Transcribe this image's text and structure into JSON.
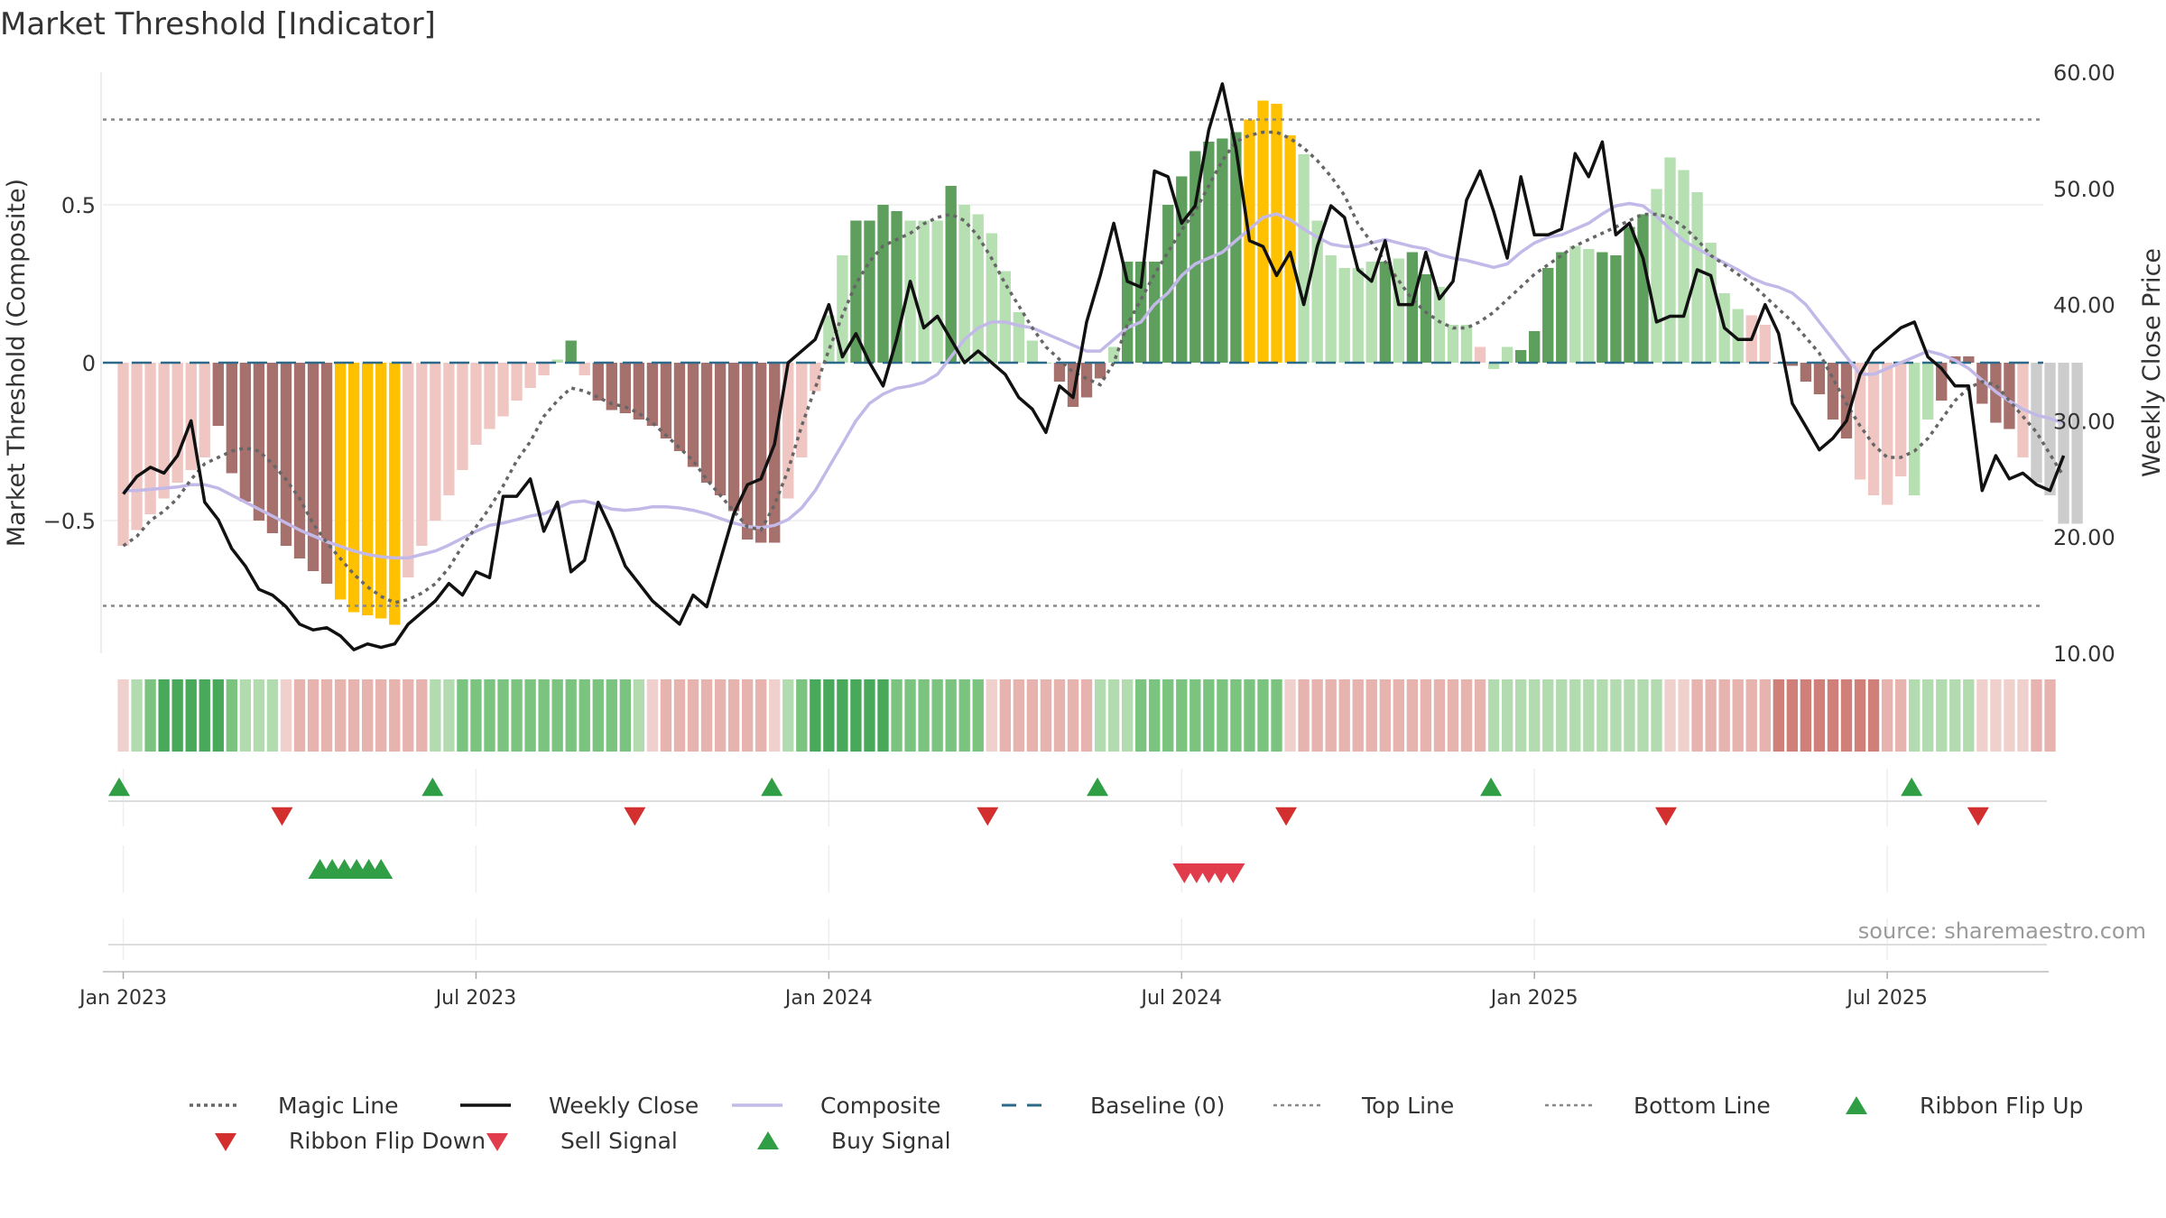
{
  "chart_data": {
    "type": "bar",
    "title": "Market Threshold [Indicator]",
    "ylabel": "Market Threshold (Composite)",
    "y2label": "Weekly Close Price",
    "ylim": [
      -0.92,
      0.92
    ],
    "y2lim": [
      10,
      60
    ],
    "yticks": [
      0.5,
      0,
      -0.5
    ],
    "yticklabels": [
      "0.5",
      "0",
      "−0.5"
    ],
    "y2ticks": [
      60,
      50,
      40,
      30,
      20,
      10
    ],
    "y2ticklabels": [
      "60.00",
      "50.00",
      "40.00",
      "30.00",
      "20.00",
      "10.00"
    ],
    "top_line": 0.77,
    "bottom_line": -0.77,
    "baseline": 0,
    "xticklabels": [
      "Jan 2023",
      "Jul 2023",
      "Jan 2024",
      "Jul 2024",
      "Jan 2025",
      "Jul 2025"
    ],
    "xtick_weeks": [
      0,
      26,
      52,
      78,
      104,
      130
    ],
    "week_range": [
      -1.5,
      141.5
    ],
    "source": "source: sharemaestro.com",
    "composite_bars": [
      -0.58,
      -0.53,
      -0.48,
      -0.43,
      -0.38,
      -0.34,
      -0.3,
      -0.2,
      -0.35,
      -0.44,
      -0.5,
      -0.54,
      -0.58,
      -0.62,
      -0.66,
      -0.7,
      -0.75,
      -0.79,
      -0.8,
      -0.81,
      -0.83,
      -0.68,
      -0.58,
      -0.5,
      -0.42,
      -0.34,
      -0.26,
      -0.21,
      -0.17,
      -0.12,
      -0.08,
      -0.04,
      0.01,
      0.07,
      -0.04,
      -0.12,
      -0.15,
      -0.16,
      -0.18,
      -0.2,
      -0.24,
      -0.28,
      -0.33,
      -0.38,
      -0.42,
      -0.47,
      -0.56,
      -0.57,
      -0.57,
      -0.43,
      -0.3,
      -0.09,
      0.15,
      0.34,
      0.45,
      0.45,
      0.5,
      0.48,
      0.45,
      0.45,
      0.45,
      0.56,
      0.5,
      0.47,
      0.41,
      0.29,
      0.16,
      0.07,
      0.0,
      -0.06,
      -0.14,
      -0.11,
      -0.05,
      0.05,
      0.32,
      0.32,
      0.32,
      0.5,
      0.59,
      0.67,
      0.7,
      0.71,
      0.73,
      0.77,
      0.83,
      0.82,
      0.72,
      0.66,
      0.45,
      0.34,
      0.3,
      0.3,
      0.32,
      0.32,
      0.33,
      0.35,
      0.28,
      0.24,
      0.12,
      0.12,
      0.05,
      -0.02,
      0.05,
      0.04,
      0.1,
      0.3,
      0.35,
      0.37,
      0.36,
      0.35,
      0.34,
      0.43,
      0.47,
      0.55,
      0.65,
      0.61,
      0.54,
      0.38,
      0.22,
      0.17,
      0.15,
      0.12,
      0.0,
      -0.01,
      -0.06,
      -0.1,
      -0.18,
      -0.24,
      -0.37,
      -0.42,
      -0.45,
      -0.36,
      -0.42,
      -0.18,
      -0.12,
      0.02,
      0.02,
      -0.13,
      -0.19,
      -0.21,
      -0.3,
      -0.38,
      -0.42,
      -0.51,
      -0.51
    ],
    "bar_colors": [
      "#efc6c1",
      "#efc6c1",
      "#efc6c1",
      "#efc6c1",
      "#efc6c1",
      "#efc6c1",
      "#efc6c1",
      "#a6706c",
      "#a6706c",
      "#a6706c",
      "#a6706c",
      "#a6706c",
      "#a6706c",
      "#a6706c",
      "#a6706c",
      "#a6706c",
      "#ffc000",
      "#ffc000",
      "#ffc000",
      "#ffc000",
      "#ffc000",
      "#efc6c1",
      "#efc6c1",
      "#efc6c1",
      "#efc6c1",
      "#efc6c1",
      "#efc6c1",
      "#efc6c1",
      "#efc6c1",
      "#efc6c1",
      "#efc6c1",
      "#efc6c1",
      "#b6dfb2",
      "#5e9f5e",
      "#efc6c1",
      "#a6706c",
      "#a6706c",
      "#a6706c",
      "#a6706c",
      "#a6706c",
      "#a6706c",
      "#a6706c",
      "#a6706c",
      "#a6706c",
      "#a6706c",
      "#a6706c",
      "#a6706c",
      "#a6706c",
      "#a6706c",
      "#efc6c1",
      "#efc6c1",
      "#efc6c1",
      "#b6dfb2",
      "#b6dfb2",
      "#5e9f5e",
      "#5e9f5e",
      "#5e9f5e",
      "#5e9f5e",
      "#b6dfb2",
      "#b6dfb2",
      "#b6dfb2",
      "#5e9f5e",
      "#b6dfb2",
      "#b6dfb2",
      "#b6dfb2",
      "#b6dfb2",
      "#b6dfb2",
      "#b6dfb2",
      "#b6dfb2",
      "#a6706c",
      "#a6706c",
      "#a6706c",
      "#a6706c",
      "#b6dfb2",
      "#5e9f5e",
      "#5e9f5e",
      "#5e9f5e",
      "#5e9f5e",
      "#5e9f5e",
      "#5e9f5e",
      "#5e9f5e",
      "#5e9f5e",
      "#5e9f5e",
      "#ffc000",
      "#ffc000",
      "#ffc000",
      "#ffc000",
      "#b6dfb2",
      "#b6dfb2",
      "#b6dfb2",
      "#b6dfb2",
      "#b6dfb2",
      "#b6dfb2",
      "#5e9f5e",
      "#b6dfb2",
      "#5e9f5e",
      "#5e9f5e",
      "#b6dfb2",
      "#b6dfb2",
      "#b6dfb2",
      "#efc6c1",
      "#b6dfb2",
      "#b6dfb2",
      "#5e9f5e",
      "#5e9f5e",
      "#5e9f5e",
      "#5e9f5e",
      "#b6dfb2",
      "#b6dfb2",
      "#5e9f5e",
      "#5e9f5e",
      "#5e9f5e",
      "#5e9f5e",
      "#b6dfb2",
      "#b6dfb2",
      "#b6dfb2",
      "#b6dfb2",
      "#b6dfb2",
      "#b6dfb2",
      "#b6dfb2",
      "#efc6c1",
      "#efc6c1",
      "#a6706c",
      "#a6706c",
      "#a6706c",
      "#a6706c",
      "#a6706c",
      "#a6706c",
      "#efc6c1",
      "#efc6c1",
      "#efc6c1",
      "#efc6c1",
      "#b6dfb2",
      "#b6dfb2",
      "#a6706c",
      "#a6706c",
      "#a6706c",
      "#a6706c",
      "#a6706c",
      "#a6706c",
      "#efc6c1"
    ],
    "weekly_close": [
      23.7,
      25.2,
      26.0,
      25.5,
      27.0,
      30.0,
      23.0,
      21.5,
      19.0,
      17.5,
      15.5,
      15.0,
      14.0,
      12.5,
      12.0,
      12.2,
      11.5,
      10.3,
      10.8,
      10.5,
      10.8,
      12.5,
      13.5,
      14.5,
      16.0,
      15.0,
      17.0,
      16.5,
      23.5,
      23.5,
      25.0,
      20.5,
      23.0,
      17.0,
      18.0,
      23.0,
      20.5,
      17.5,
      16.0,
      14.5,
      13.5,
      12.5,
      15.0,
      14.0,
      18.0,
      22.0,
      24.5,
      25.0,
      28.0,
      35.0,
      36.0,
      37.0,
      40.0,
      35.5,
      37.5,
      35.0,
      33.0,
      37.0,
      42.0,
      38.0,
      39.0,
      37.0,
      35.0,
      36.0,
      35.0,
      34.0,
      32.0,
      31.0,
      29.0,
      33.0,
      32.0,
      38.5,
      42.5,
      47.0,
      42.0,
      41.5,
      51.5,
      51.0,
      47.0,
      48.5,
      55.0,
      59.0,
      53.5,
      45.5,
      45.0,
      42.5,
      44.5,
      40.0,
      45.0,
      48.5,
      47.5,
      43.0,
      42.0,
      45.5,
      40.0,
      40.0,
      44.5,
      40.5,
      42.0,
      49.0,
      51.5,
      48.0,
      44.0,
      51.0,
      46.0,
      46.0,
      46.5,
      53.0,
      51.0,
      54.0,
      46.0,
      47.0,
      44.0,
      38.5,
      39.0,
      39.0,
      43.0,
      42.5,
      38.0,
      37.0,
      37.0,
      40.0,
      37.5,
      31.5,
      29.5,
      27.5,
      28.5,
      30.0,
      34.0,
      36.0,
      37.0,
      38.0,
      38.5,
      35.5,
      34.5,
      33.0,
      33.0,
      24.0,
      27.0,
      25.0,
      25.5,
      24.5,
      24.0,
      27.0
    ],
    "composite_line": [
      24.0,
      24.0,
      24.1,
      24.2,
      24.3,
      24.5,
      24.5,
      24.2,
      23.6,
      23.0,
      22.4,
      21.8,
      21.2,
      20.6,
      20.1,
      19.6,
      19.2,
      18.8,
      18.5,
      18.3,
      18.2,
      18.2,
      18.5,
      18.8,
      19.3,
      19.9,
      20.5,
      21.0,
      21.2,
      21.5,
      21.8,
      22.0,
      22.5,
      23.0,
      23.1,
      22.8,
      22.4,
      22.3,
      22.4,
      22.6,
      22.6,
      22.5,
      22.3,
      22.0,
      21.6,
      21.2,
      20.9,
      20.8,
      21.0,
      21.5,
      22.5,
      24.0,
      26.0,
      28.0,
      30.0,
      31.5,
      32.3,
      32.8,
      33.0,
      33.3,
      34.0,
      35.5,
      37.0,
      38.0,
      38.5,
      38.5,
      38.2,
      38.0,
      37.5,
      37.0,
      36.5,
      36.0,
      36.0,
      37.0,
      38.0,
      38.5,
      40.0,
      41.0,
      42.5,
      43.5,
      44.0,
      44.5,
      45.5,
      46.5,
      47.5,
      47.8,
      47.3,
      46.5,
      45.8,
      45.2,
      45.0,
      45.0,
      45.3,
      45.6,
      45.3,
      45.0,
      44.8,
      44.3,
      44.0,
      43.8,
      43.5,
      43.2,
      43.5,
      44.5,
      45.3,
      45.8,
      46.0,
      46.5,
      47.0,
      47.8,
      48.5,
      48.7,
      48.5,
      47.6,
      46.5,
      45.5,
      44.8,
      44.2,
      43.6,
      43.0,
      42.3,
      41.8,
      41.5,
      41.0,
      40.0,
      38.5,
      37.0,
      35.5,
      34.0,
      34.0,
      34.5,
      35.0,
      35.5,
      36.0,
      35.7,
      35.2,
      34.5,
      33.5,
      32.5,
      31.7,
      31.0,
      30.5,
      30.2,
      29.8
    ],
    "magic_line": [
      -0.58,
      -0.55,
      -0.5,
      -0.47,
      -0.43,
      -0.37,
      -0.32,
      -0.3,
      -0.28,
      -0.27,
      -0.28,
      -0.32,
      -0.37,
      -0.43,
      -0.51,
      -0.57,
      -0.62,
      -0.67,
      -0.71,
      -0.74,
      -0.76,
      -0.75,
      -0.73,
      -0.7,
      -0.65,
      -0.58,
      -0.52,
      -0.46,
      -0.39,
      -0.31,
      -0.25,
      -0.17,
      -0.12,
      -0.08,
      -0.09,
      -0.11,
      -0.13,
      -0.14,
      -0.16,
      -0.19,
      -0.23,
      -0.27,
      -0.31,
      -0.37,
      -0.42,
      -0.47,
      -0.52,
      -0.53,
      -0.45,
      -0.34,
      -0.2,
      -0.08,
      0.04,
      0.15,
      0.25,
      0.32,
      0.37,
      0.39,
      0.41,
      0.44,
      0.46,
      0.47,
      0.45,
      0.4,
      0.33,
      0.25,
      0.18,
      0.11,
      0.05,
      0.01,
      -0.03,
      -0.05,
      -0.07,
      0.0,
      0.12,
      0.2,
      0.28,
      0.35,
      0.42,
      0.48,
      0.56,
      0.64,
      0.7,
      0.72,
      0.73,
      0.73,
      0.71,
      0.68,
      0.64,
      0.59,
      0.53,
      0.44,
      0.38,
      0.32,
      0.26,
      0.2,
      0.16,
      0.13,
      0.11,
      0.11,
      0.13,
      0.16,
      0.2,
      0.24,
      0.28,
      0.31,
      0.34,
      0.37,
      0.39,
      0.41,
      0.43,
      0.45,
      0.47,
      0.47,
      0.46,
      0.43,
      0.39,
      0.34,
      0.31,
      0.28,
      0.25,
      0.21,
      0.17,
      0.13,
      0.08,
      0.03,
      -0.05,
      -0.13,
      -0.2,
      -0.26,
      -0.3,
      -0.3,
      -0.28,
      -0.24,
      -0.18,
      -0.12,
      -0.08,
      -0.06,
      -0.07,
      -0.12,
      -0.17,
      -0.22,
      -0.29,
      -0.36
    ],
    "ribbon_colors": [
      "#f0d0cd",
      "#b2dbb0",
      "#7bc47f",
      "#48a95a",
      "#48a95a",
      "#48a95a",
      "#48a95a",
      "#48a95a",
      "#7bc47f",
      "#b2dbb0",
      "#b2dbb0",
      "#b2dbb0",
      "#f0d0cd",
      "#e6b3af",
      "#e6b3af",
      "#e6b3af",
      "#e6b3af",
      "#e6b3af",
      "#e6b3af",
      "#e6b3af",
      "#e6b3af",
      "#e6b3af",
      "#e6b3af",
      "#b2dbb0",
      "#b2dbb0",
      "#7bc47f",
      "#7bc47f",
      "#7bc47f",
      "#7bc47f",
      "#7bc47f",
      "#7bc47f",
      "#7bc47f",
      "#7bc47f",
      "#7bc47f",
      "#7bc47f",
      "#7bc47f",
      "#7bc47f",
      "#7bc47f",
      "#b2dbb0",
      "#f0d0cd",
      "#e6b3af",
      "#e6b3af",
      "#e6b3af",
      "#e6b3af",
      "#e6b3af",
      "#e6b3af",
      "#e6b3af",
      "#e6b3af",
      "#f0d0cd",
      "#b2dbb0",
      "#7bc47f",
      "#48a95a",
      "#48a95a",
      "#48a95a",
      "#48a95a",
      "#48a95a",
      "#48a95a",
      "#7bc47f",
      "#7bc47f",
      "#7bc47f",
      "#7bc47f",
      "#7bc47f",
      "#7bc47f",
      "#7bc47f",
      "#f0d0cd",
      "#e6b3af",
      "#e6b3af",
      "#e6b3af",
      "#e6b3af",
      "#e6b3af",
      "#e6b3af",
      "#e6b3af",
      "#b2dbb0",
      "#b2dbb0",
      "#b2dbb0",
      "#7bc47f",
      "#7bc47f",
      "#7bc47f",
      "#7bc47f",
      "#7bc47f",
      "#7bc47f",
      "#7bc47f",
      "#7bc47f",
      "#7bc47f",
      "#7bc47f",
      "#7bc47f",
      "#f0d0cd",
      "#e6b3af",
      "#e6b3af",
      "#e6b3af",
      "#e6b3af",
      "#e6b3af",
      "#e6b3af",
      "#e6b3af",
      "#e6b3af",
      "#e6b3af",
      "#e6b3af",
      "#e6b3af",
      "#e6b3af",
      "#e6b3af",
      "#e6b3af",
      "#b2dbb0",
      "#b2dbb0",
      "#b2dbb0",
      "#b2dbb0",
      "#b2dbb0",
      "#b2dbb0",
      "#b2dbb0",
      "#b2dbb0",
      "#b2dbb0",
      "#b2dbb0",
      "#b2dbb0",
      "#b2dbb0",
      "#b2dbb0",
      "#f0d0cd",
      "#f0d0cd",
      "#e6b3af",
      "#e6b3af",
      "#e6b3af",
      "#e6b3af",
      "#e6b3af",
      "#e6b3af",
      "#d07f79",
      "#d07f79",
      "#d07f79",
      "#d07f79",
      "#d07f79",
      "#d07f79",
      "#d07f79",
      "#d07f79",
      "#e6b3af",
      "#e6b3af",
      "#b2dbb0",
      "#b2dbb0",
      "#b2dbb0",
      "#b2dbb0",
      "#b2dbb0",
      "#f0d0cd",
      "#f0d0cd",
      "#f0d0cd",
      "#f0d0cd",
      "#e6b3af",
      "#e6b3af"
    ],
    "ribbon_flip_up_weeks": [
      -0.3,
      22.8,
      47.8,
      71.8,
      100.8,
      131.8
    ],
    "ribbon_flip_down_weeks": [
      11.7,
      37.7,
      63.7,
      85.7,
      113.7,
      136.7
    ],
    "buy_signal_weeks": [
      14.5,
      15.4,
      16.3,
      17.2,
      18.1,
      19.0
    ],
    "sell_signal_weeks": [
      78.2,
      79.1,
      80.0,
      80.9,
      81.8
    ],
    "colors": {
      "magic_line": "#666666",
      "weekly_close": "#111111",
      "composite_line": "#c3b9e8",
      "baseline": "#2d6a8a",
      "threshold_lines": "#888888",
      "flip_up": "#2f9e44",
      "flip_down": "#d32f2f",
      "buy": "#2f9e44",
      "sell": "#e03c4c",
      "grid": "#eeeeee",
      "text": "#333333",
      "source": "#9a9a9a"
    },
    "legend": [
      {
        "label": "Magic Line",
        "kind": "dotted",
        "color": "#666666"
      },
      {
        "label": "Weekly Close",
        "kind": "solid",
        "color": "#111111"
      },
      {
        "label": "Composite",
        "kind": "solid",
        "color": "#c3b9e8"
      },
      {
        "label": "Baseline (0)",
        "kind": "dashed",
        "color": "#2d6a8a"
      },
      {
        "label": "Top Line",
        "kind": "dotted-light",
        "color": "#888888"
      },
      {
        "label": "Bottom Line",
        "kind": "dotted-light",
        "color": "#888888"
      },
      {
        "label": "Ribbon Flip Up",
        "kind": "tri-up",
        "color": "#2f9e44"
      },
      {
        "label": "Ribbon Flip Down",
        "kind": "tri-down",
        "color": "#d32f2f"
      },
      {
        "label": "Sell Signal",
        "kind": "tri-down",
        "color": "#e03c4c"
      },
      {
        "label": "Buy Signal",
        "kind": "tri-up",
        "color": "#2f9e44"
      }
    ],
    "legend_placement": "bottom"
  }
}
